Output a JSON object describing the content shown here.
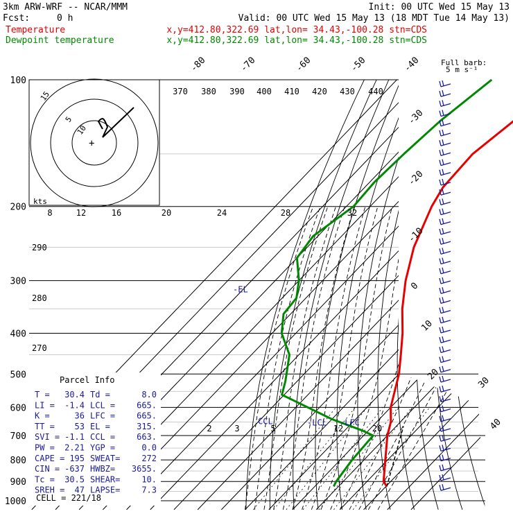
{
  "header": {
    "model": "3km ARW-WRF -- NCAR/MMM",
    "init": "Init: 00 UTC Wed 15 May 13",
    "fcst_label": "Fcst:",
    "fcst_value": "0 h",
    "valid": "Valid: 00 UTC Wed 15 May 13 (18 MDT Tue 14 May 13)",
    "temp_line": {
      "name": "Temperature",
      "info": "x,y=412.80,322.69   lat,lon= 34.43,-100.28  stn=CDS",
      "color": "#e60000"
    },
    "dew_line": {
      "name": "Dewpoint temperature",
      "info": "x,y=412.80,322.69   lat,lon= 34.43,-100.28  stn=CDS",
      "color": "#008800"
    }
  },
  "barb_key": {
    "line1": "Full barb:",
    "line2": "5 m s⁻¹"
  },
  "chart_data": {
    "type": "line",
    "subtype": "skew-T log-P diagram",
    "pressure_ticks": [
      "100",
      "200",
      "300",
      "400",
      "500",
      "600",
      "700",
      "800",
      "900",
      "1000"
    ],
    "isotherm_labels": [
      "-80",
      "-70",
      "-60",
      "-50",
      "-40",
      "-30",
      "-20",
      "-10",
      "0",
      "10",
      "20",
      "30",
      "40"
    ],
    "theta_e_labels": [
      "370",
      "380",
      "390",
      "400",
      "410",
      "420",
      "430",
      "440"
    ],
    "dry_adiabat_labels": [
      "290",
      "280",
      "270"
    ],
    "mixing_ratio_labels": [
      "2",
      "3",
      "5",
      "12",
      "20"
    ],
    "hodograph": {
      "unit_label": "kts",
      "ring_labels": [
        "5",
        "10",
        "15"
      ],
      "speed_labels": [
        "8",
        "12",
        "16",
        "20",
        "24",
        "28",
        "32"
      ]
    },
    "series": [
      {
        "name": "Temperature",
        "color": "#e60000",
        "points": [
          [
            100,
            -59
          ],
          [
            110,
            -60
          ],
          [
            125,
            -64
          ],
          [
            150,
            -68
          ],
          [
            180,
            -67
          ],
          [
            200,
            -64
          ],
          [
            250,
            -55
          ],
          [
            300,
            -45
          ],
          [
            350,
            -35
          ],
          [
            400,
            -25
          ],
          [
            450,
            -17
          ],
          [
            500,
            -10
          ],
          [
            600,
            0
          ],
          [
            650,
            6
          ],
          [
            700,
            10
          ],
          [
            800,
            19
          ],
          [
            900,
            27
          ],
          [
            925,
            30.4
          ]
        ]
      },
      {
        "name": "Dewpoint temperature",
        "color": "#008800",
        "points": [
          [
            100,
            -90
          ],
          [
            125,
            -95
          ],
          [
            150,
            -97
          ],
          [
            175,
            -98
          ],
          [
            200,
            -97
          ],
          [
            235,
            -102
          ],
          [
            265,
            -100
          ],
          [
            300,
            -90
          ],
          [
            330,
            -84
          ],
          [
            360,
            -83
          ],
          [
            400,
            -76
          ],
          [
            450,
            -64
          ],
          [
            520,
            -55
          ],
          [
            560,
            -51
          ],
          [
            600,
            -35
          ],
          [
            640,
            -20
          ],
          [
            680,
            -3
          ],
          [
            700,
            4
          ],
          [
            800,
            5
          ],
          [
            900,
            7
          ],
          [
            925,
            8
          ]
        ]
      }
    ],
    "levels": [
      {
        "label": "EL",
        "pressure": 315
      },
      {
        "label": "LCL",
        "pressure": 665
      },
      {
        "label": "LFC",
        "pressure": 665
      },
      {
        "label": "CCL",
        "pressure": 663
      }
    ]
  },
  "parcel": {
    "title": "Parcel Info",
    "rows": [
      [
        "T  =",
        "30.4",
        "Td =",
        "8.0"
      ],
      [
        "LI =",
        "-1.4",
        "LCL =",
        "665."
      ],
      [
        "K  =",
        "36",
        "LFC =",
        "665."
      ],
      [
        "TT =",
        "53",
        "EL =",
        "315."
      ],
      [
        "SVI =",
        "-1.1",
        "CCL =",
        "663."
      ],
      [
        "PW =",
        "2.21",
        "YGP =",
        "0.0"
      ],
      [
        "CAPE =",
        "195",
        "SWEAT=",
        "272"
      ],
      [
        "CIN =",
        "-637",
        "HWBZ=",
        "3655."
      ],
      [
        "Tc =",
        "30.5",
        "SHEAR=",
        "10."
      ],
      [
        "SREH =",
        "47",
        "LAPSE=",
        "7.3"
      ]
    ],
    "cell": "CELL = 221/18"
  }
}
